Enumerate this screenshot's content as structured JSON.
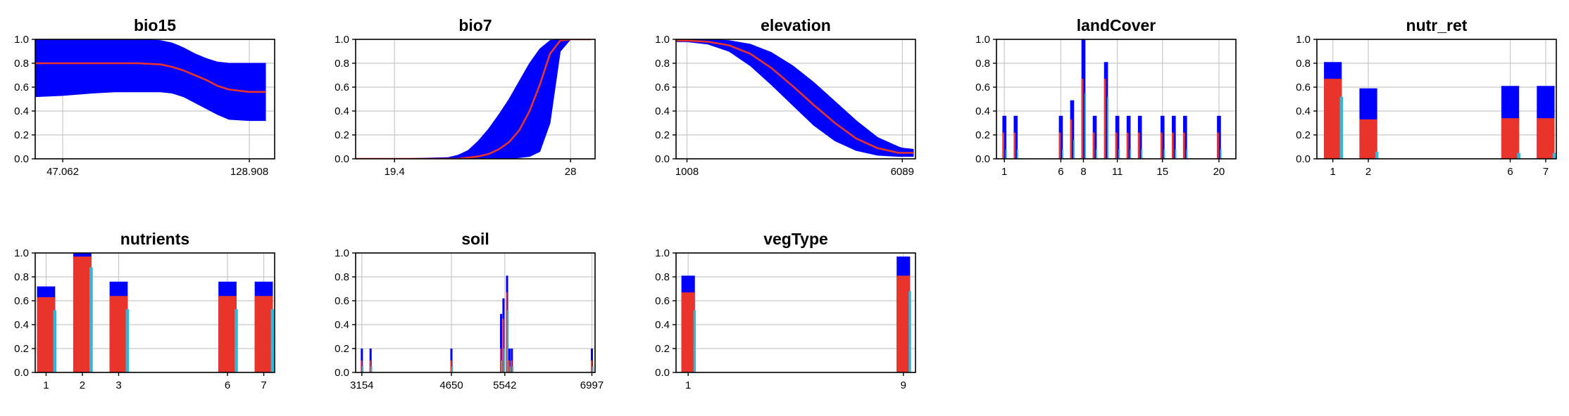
{
  "colors": {
    "ci": "#0000ff",
    "mean": "#e8342a",
    "aux": "#30b8dc",
    "grid": "#c8c8c8"
  },
  "chart_data": [
    {
      "type": "area",
      "title": "bio15",
      "xticks": [
        "47.062",
        "128.908"
      ],
      "xlim": [
        35,
        140
      ],
      "yticks": [
        "0.0",
        "0.2",
        "0.4",
        "0.6",
        "0.8",
        "1.0"
      ],
      "ylim": [
        0,
        1
      ],
      "x": [
        35,
        47.062,
        60,
        70,
        80,
        90,
        95,
        100,
        105,
        110,
        115,
        120,
        128.908,
        136
      ],
      "lower": [
        0.52,
        0.53,
        0.55,
        0.56,
        0.56,
        0.56,
        0.55,
        0.52,
        0.47,
        0.42,
        0.37,
        0.33,
        0.32,
        0.32
      ],
      "upper": [
        1.0,
        1.0,
        1.0,
        1.0,
        1.0,
        0.99,
        0.97,
        0.93,
        0.88,
        0.84,
        0.81,
        0.8,
        0.8,
        0.8
      ],
      "mean": [
        0.8,
        0.8,
        0.8,
        0.8,
        0.8,
        0.79,
        0.77,
        0.74,
        0.7,
        0.66,
        0.61,
        0.58,
        0.56,
        0.56
      ]
    },
    {
      "type": "area",
      "title": "bio7",
      "xticks": [
        "19.4",
        "28"
      ],
      "xlim": [
        17.5,
        29.2
      ],
      "yticks": [
        "0.0",
        "0.2",
        "0.4",
        "0.6",
        "0.8",
        "1.0"
      ],
      "ylim": [
        0,
        1
      ],
      "x": [
        17.5,
        19.4,
        22,
        22.5,
        23,
        23.5,
        24,
        24.5,
        25,
        25.5,
        26,
        26.5,
        27,
        27.5,
        28,
        29
      ],
      "lower": [
        0,
        0,
        0,
        0,
        0,
        0,
        0,
        0,
        0,
        0.01,
        0.02,
        0.06,
        0.3,
        0.9,
        1.0,
        1.0
      ],
      "upper": [
        0,
        0,
        0.01,
        0.03,
        0.07,
        0.15,
        0.25,
        0.37,
        0.5,
        0.65,
        0.8,
        0.92,
        0.99,
        1.0,
        1.0,
        1.0
      ],
      "mean": [
        0,
        0,
        0,
        0,
        0.01,
        0.02,
        0.04,
        0.08,
        0.14,
        0.24,
        0.4,
        0.62,
        0.88,
        0.99,
        1.0,
        1.0
      ]
    },
    {
      "type": "area",
      "title": "elevation",
      "xticks": [
        "1008",
        "6089"
      ],
      "xlim": [
        750,
        6400
      ],
      "yticks": [
        "0.0",
        "0.2",
        "0.4",
        "0.6",
        "0.8",
        "1.0"
      ],
      "ylim": [
        0,
        1
      ],
      "x": [
        750,
        1008,
        1500,
        2000,
        2500,
        3000,
        3500,
        4000,
        4500,
        5000,
        5500,
        6000,
        6089,
        6350
      ],
      "lower": [
        0.98,
        0.98,
        0.96,
        0.9,
        0.78,
        0.62,
        0.45,
        0.28,
        0.15,
        0.07,
        0.03,
        0.02,
        0.02,
        0.02
      ],
      "upper": [
        1.0,
        1.0,
        1.0,
        0.99,
        0.96,
        0.89,
        0.78,
        0.64,
        0.48,
        0.32,
        0.18,
        0.1,
        0.09,
        0.08
      ],
      "mean": [
        0.99,
        0.99,
        0.98,
        0.95,
        0.88,
        0.76,
        0.61,
        0.45,
        0.3,
        0.17,
        0.09,
        0.05,
        0.05,
        0.05
      ]
    },
    {
      "type": "bar",
      "title": "landCover",
      "xticks": [
        "1",
        "6",
        "8",
        "11",
        "15",
        "20"
      ],
      "xlim": [
        0.3,
        21.5
      ],
      "yticks": [
        "0.0",
        "0.2",
        "0.4",
        "0.6",
        "0.8",
        "1.0"
      ],
      "ylim": [
        0,
        1
      ],
      "categories": [
        1,
        2,
        6,
        7,
        8,
        9,
        10,
        11,
        12,
        13,
        15,
        16,
        17,
        20
      ],
      "ci": [
        0.36,
        0.36,
        0.36,
        0.49,
        1.0,
        0.36,
        0.81,
        0.36,
        0.36,
        0.36,
        0.36,
        0.36,
        0.36,
        0.36
      ],
      "mean": [
        0.22,
        0.22,
        0.22,
        0.33,
        0.67,
        0.22,
        0.67,
        0.22,
        0.22,
        0.22,
        0.22,
        0.22,
        0.22,
        0.22
      ],
      "aux": [
        0.08,
        0.08,
        0.08,
        0.16,
        0.55,
        0.08,
        0.52,
        0.08,
        0.08,
        0.08,
        0.08,
        0.08,
        0.08,
        0.08
      ],
      "ci_width": 0.35,
      "mean_width": 0.17,
      "aux_width": 0.12
    },
    {
      "type": "bar",
      "title": "nutr_ret",
      "xticks": [
        "1",
        "2",
        "6",
        "7"
      ],
      "xlim": [
        0.55,
        7.3
      ],
      "yticks": [
        "0.0",
        "0.2",
        "0.4",
        "0.6",
        "0.8",
        "1.0"
      ],
      "ylim": [
        0,
        1
      ],
      "categories": [
        1,
        2,
        6,
        7
      ],
      "ci": [
        0.81,
        0.59,
        0.61,
        0.61
      ],
      "mean": [
        0.67,
        0.33,
        0.34,
        0.34
      ],
      "aux": [
        0.52,
        0.06,
        0.05,
        0.05
      ],
      "ci_width": 0.5,
      "mean_width": 0.5,
      "aux_width": 0.09
    },
    {
      "type": "bar",
      "title": "nutrients",
      "xticks": [
        "1",
        "2",
        "3",
        "6",
        "7"
      ],
      "xlim": [
        0.7,
        7.3
      ],
      "yticks": [
        "0.0",
        "0.2",
        "0.4",
        "0.6",
        "0.8",
        "1.0"
      ],
      "ylim": [
        0,
        1
      ],
      "categories": [
        1,
        2,
        3,
        6,
        7
      ],
      "ci": [
        0.72,
        1.0,
        0.76,
        0.76,
        0.76
      ],
      "mean": [
        0.63,
        0.97,
        0.64,
        0.64,
        0.64
      ],
      "aux": [
        0.52,
        0.88,
        0.53,
        0.53,
        0.53
      ],
      "ci_width": 0.5,
      "mean_width": 0.5,
      "aux_width": 0.09
    },
    {
      "type": "bar",
      "title": "soil",
      "xticks": [
        "3154",
        "4650",
        "5542",
        "6997"
      ],
      "xlim": [
        3050,
        7050
      ],
      "yticks": [
        "0.0",
        "0.2",
        "0.4",
        "0.6",
        "0.8",
        "1.0"
      ],
      "ylim": [
        0,
        1
      ],
      "categories": [
        3154,
        3300,
        4650,
        5480,
        5520,
        5580,
        5620,
        5660,
        6997
      ],
      "ci": [
        0.2,
        0.2,
        0.2,
        0.49,
        0.62,
        0.81,
        0.2,
        0.2,
        0.2
      ],
      "mean": [
        0.1,
        0.1,
        0.1,
        0.2,
        0.45,
        0.67,
        0.1,
        0.1,
        0.1
      ],
      "aux": [
        0.05,
        0.05,
        0.05,
        0.1,
        0.2,
        0.52,
        0.05,
        0.05,
        0.05
      ],
      "ci_width": 30,
      "mean_width": 14,
      "aux_width": 10
    },
    {
      "type": "bar",
      "title": "vegType",
      "xticks": [
        "1",
        "9"
      ],
      "xlim": [
        0.55,
        9.45
      ],
      "yticks": [
        "0.0",
        "0.2",
        "0.4",
        "0.6",
        "0.8",
        "1.0"
      ],
      "ylim": [
        0,
        1
      ],
      "categories": [
        1,
        9
      ],
      "ci": [
        0.81,
        0.97
      ],
      "mean": [
        0.67,
        0.81
      ],
      "aux": [
        0.52,
        0.68
      ],
      "ci_width": 0.5,
      "mean_width": 0.5,
      "aux_width": 0.09
    }
  ]
}
